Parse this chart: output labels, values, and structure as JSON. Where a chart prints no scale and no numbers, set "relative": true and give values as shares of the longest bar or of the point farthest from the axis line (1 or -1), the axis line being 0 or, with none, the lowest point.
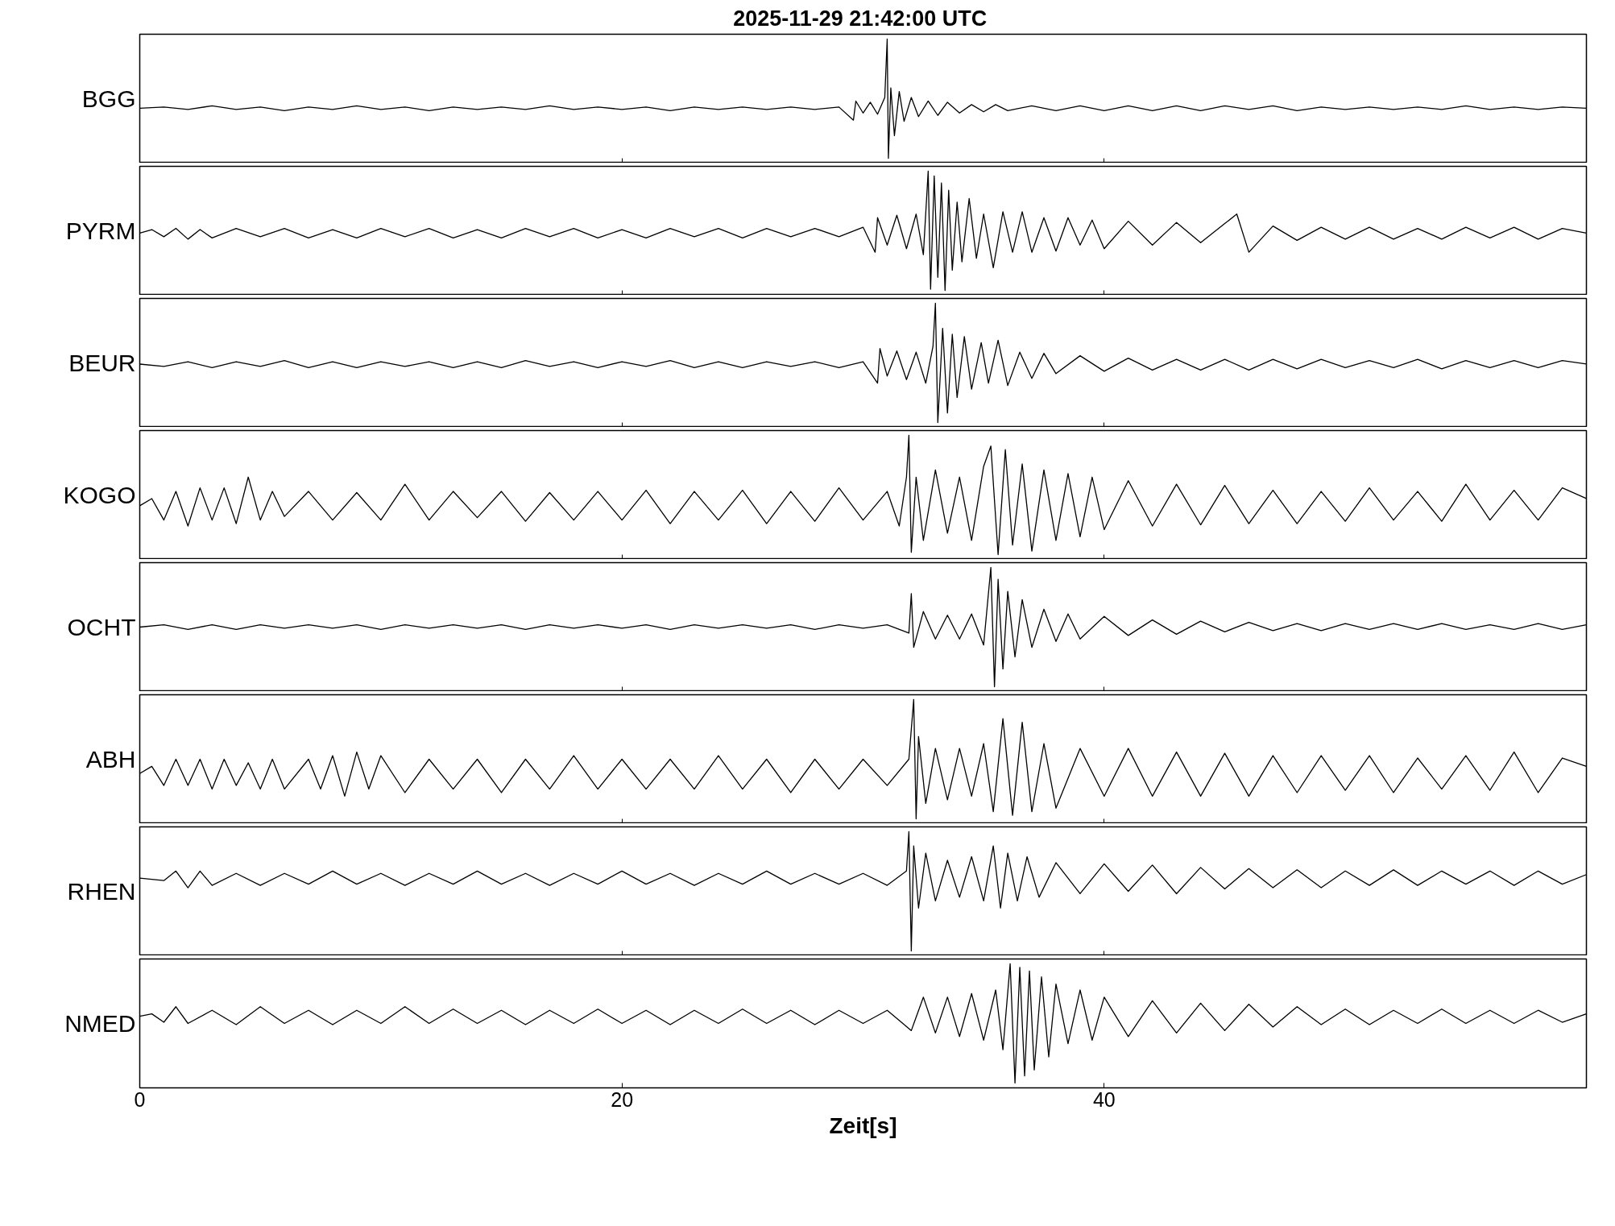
{
  "chart_data": [
    {
      "type": "line",
      "title": "2025-11-29  21:42:00 UTC",
      "ylabel": "BGG",
      "relative": true,
      "xlim": [
        0,
        60
      ],
      "xticks": [
        0,
        20,
        40
      ],
      "tick_labels": false,
      "series": [
        {
          "color": "#000000",
          "x": [
            0,
            1,
            2,
            3,
            4,
            5,
            6,
            7,
            8,
            9,
            10,
            11,
            12,
            13,
            14,
            15,
            16,
            17,
            18,
            19,
            20,
            21,
            22,
            23,
            24,
            25,
            26,
            27,
            28,
            29,
            29.6,
            29.7,
            30.0,
            30.3,
            30.6,
            30.9,
            31.0,
            31.05,
            31.15,
            31.3,
            31.5,
            31.7,
            32.0,
            32.3,
            32.7,
            33.1,
            33.5,
            34,
            34.5,
            35,
            35.5,
            36,
            37,
            38,
            39,
            40,
            41,
            42,
            43,
            44,
            45,
            46,
            47,
            48,
            49,
            50,
            51,
            52,
            53,
            54,
            55,
            56,
            57,
            58,
            59,
            60
          ],
          "values": [
            0.42,
            0.43,
            0.41,
            0.44,
            0.41,
            0.43,
            0.4,
            0.43,
            0.41,
            0.44,
            0.41,
            0.43,
            0.4,
            0.43,
            0.41,
            0.43,
            0.41,
            0.44,
            0.41,
            0.43,
            0.41,
            0.43,
            0.4,
            0.43,
            0.41,
            0.43,
            0.41,
            0.43,
            0.41,
            0.43,
            0.32,
            0.48,
            0.38,
            0.47,
            0.37,
            0.51,
            1,
            0,
            0.59,
            0.19,
            0.56,
            0.31,
            0.51,
            0.35,
            0.48,
            0.36,
            0.47,
            0.38,
            0.45,
            0.39,
            0.45,
            0.4,
            0.44,
            0.4,
            0.44,
            0.4,
            0.44,
            0.4,
            0.44,
            0.4,
            0.44,
            0.41,
            0.44,
            0.4,
            0.43,
            0.41,
            0.43,
            0.41,
            0.43,
            0.41,
            0.44,
            0.41,
            0.43,
            0.41,
            0.43,
            0.42
          ]
        }
      ]
    },
    {
      "type": "line",
      "ylabel": "PYRM",
      "relative": true,
      "xlim": [
        0,
        60
      ],
      "xticks": [
        0,
        20,
        40
      ],
      "tick_labels": false,
      "series": [
        {
          "color": "#000000",
          "x": [
            0,
            0.5,
            1,
            1.5,
            2,
            2.5,
            3,
            4,
            5,
            6,
            7,
            8,
            9,
            10,
            11,
            12,
            13,
            14,
            15,
            16,
            17,
            18,
            19,
            20,
            21,
            22,
            23,
            24,
            25,
            26,
            27,
            28,
            29,
            30,
            30.5,
            30.6,
            31,
            31.4,
            31.8,
            32.2,
            32.5,
            32.7,
            32.8,
            32.95,
            33.1,
            33.25,
            33.4,
            33.55,
            33.7,
            33.9,
            34.1,
            34.4,
            34.7,
            35,
            35.4,
            35.8,
            36.2,
            36.6,
            37,
            37.5,
            38,
            38.5,
            39,
            39.5,
            40,
            41,
            42,
            43,
            44,
            45,
            45.5,
            46,
            47,
            48,
            49,
            50,
            51,
            52,
            53,
            54,
            55,
            56,
            57,
            58,
            59,
            60
          ],
          "values": [
            0.48,
            0.51,
            0.45,
            0.52,
            0.43,
            0.51,
            0.44,
            0.52,
            0.45,
            0.52,
            0.44,
            0.51,
            0.44,
            0.52,
            0.45,
            0.52,
            0.44,
            0.51,
            0.44,
            0.52,
            0.45,
            0.52,
            0.44,
            0.51,
            0.44,
            0.52,
            0.45,
            0.52,
            0.44,
            0.52,
            0.45,
            0.52,
            0.45,
            0.53,
            0.32,
            0.61,
            0.38,
            0.63,
            0.35,
            0.64,
            0.3,
            1,
            0.01,
            0.96,
            0.11,
            0.9,
            0,
            0.84,
            0.17,
            0.74,
            0.24,
            0.77,
            0.27,
            0.64,
            0.19,
            0.66,
            0.32,
            0.66,
            0.32,
            0.61,
            0.33,
            0.61,
            0.38,
            0.59,
            0.35,
            0.58,
            0.38,
            0.57,
            0.4,
            0.56,
            0.64,
            0.32,
            0.54,
            0.42,
            0.53,
            0.43,
            0.53,
            0.43,
            0.52,
            0.43,
            0.53,
            0.44,
            0.53,
            0.43,
            0.52,
            0.48
          ]
        }
      ]
    },
    {
      "type": "line",
      "ylabel": "BEUR",
      "relative": true,
      "xlim": [
        0,
        60
      ],
      "xticks": [
        0,
        20,
        40
      ],
      "tick_labels": false,
      "series": [
        {
          "color": "#000000",
          "x": [
            0,
            1,
            2,
            3,
            4,
            5,
            6,
            7,
            8,
            9,
            10,
            11,
            12,
            13,
            14,
            15,
            16,
            17,
            18,
            19,
            20,
            21,
            22,
            23,
            24,
            25,
            26,
            27,
            28,
            29,
            30,
            30.6,
            30.7,
            31,
            31.4,
            31.8,
            32.2,
            32.6,
            32.9,
            33.0,
            33.1,
            33.3,
            33.5,
            33.7,
            33.9,
            34.2,
            34.5,
            34.9,
            35.2,
            35.6,
            36,
            36.5,
            37,
            37.5,
            38,
            39,
            40,
            41,
            42,
            43,
            44,
            45,
            46,
            47,
            48,
            49,
            50,
            51,
            52,
            53,
            54,
            55,
            56,
            57,
            58,
            59,
            60
          ],
          "values": [
            0.49,
            0.47,
            0.51,
            0.46,
            0.51,
            0.47,
            0.52,
            0.46,
            0.51,
            0.46,
            0.51,
            0.47,
            0.51,
            0.46,
            0.51,
            0.46,
            0.52,
            0.47,
            0.51,
            0.46,
            0.51,
            0.47,
            0.52,
            0.46,
            0.51,
            0.46,
            0.51,
            0.47,
            0.51,
            0.46,
            0.51,
            0.33,
            0.62,
            0.39,
            0.6,
            0.36,
            0.59,
            0.33,
            0.64,
            1,
            0,
            0.79,
            0.08,
            0.74,
            0.21,
            0.72,
            0.28,
            0.67,
            0.33,
            0.69,
            0.31,
            0.59,
            0.37,
            0.58,
            0.41,
            0.56,
            0.43,
            0.54,
            0.44,
            0.53,
            0.44,
            0.53,
            0.44,
            0.53,
            0.45,
            0.53,
            0.46,
            0.52,
            0.46,
            0.53,
            0.45,
            0.52,
            0.46,
            0.52,
            0.46,
            0.52,
            0.49
          ]
        }
      ]
    },
    {
      "type": "line",
      "ylabel": "KOGO",
      "relative": true,
      "xlim": [
        0,
        60
      ],
      "xticks": [
        0,
        20,
        40
      ],
      "tick_labels": false,
      "series": [
        {
          "color": "#000000",
          "x": [
            0,
            0.5,
            1,
            1.5,
            2,
            2.5,
            3,
            3.5,
            4,
            4.5,
            5,
            5.5,
            6,
            7,
            8,
            9,
            10,
            11,
            12,
            13,
            14,
            15,
            16,
            17,
            18,
            19,
            20,
            21,
            22,
            23,
            24,
            25,
            26,
            27,
            28,
            29,
            30,
            31,
            31.5,
            31.8,
            31.9,
            32.0,
            32.2,
            32.5,
            33,
            33.5,
            34,
            34.5,
            35,
            35.3,
            35.6,
            35.9,
            36.2,
            36.6,
            37,
            37.5,
            38,
            38.5,
            39,
            39.5,
            40,
            41,
            42,
            43,
            44,
            45,
            46,
            47,
            48,
            49,
            50,
            51,
            52,
            53,
            54,
            55,
            56,
            57,
            58,
            59,
            60
          ],
          "values": [
            0.41,
            0.47,
            0.29,
            0.53,
            0.24,
            0.56,
            0.29,
            0.56,
            0.26,
            0.65,
            0.29,
            0.53,
            0.32,
            0.53,
            0.29,
            0.52,
            0.29,
            0.59,
            0.29,
            0.53,
            0.31,
            0.53,
            0.28,
            0.52,
            0.29,
            0.53,
            0.29,
            0.54,
            0.26,
            0.53,
            0.29,
            0.54,
            0.26,
            0.53,
            0.28,
            0.56,
            0.29,
            0.53,
            0.24,
            0.65,
            1,
            0.02,
            0.65,
            0.12,
            0.71,
            0.18,
            0.65,
            0.12,
            0.74,
            0.91,
            0,
            0.88,
            0.08,
            0.76,
            0.03,
            0.71,
            0.12,
            0.68,
            0.15,
            0.65,
            0.21,
            0.62,
            0.24,
            0.59,
            0.25,
            0.58,
            0.26,
            0.54,
            0.26,
            0.53,
            0.28,
            0.56,
            0.29,
            0.53,
            0.28,
            0.59,
            0.29,
            0.54,
            0.29,
            0.56,
            0.47
          ]
        }
      ]
    },
    {
      "type": "line",
      "ylabel": "OCHT",
      "relative": true,
      "xlim": [
        0,
        60
      ],
      "xticks": [
        0,
        20,
        40
      ],
      "tick_labels": false,
      "series": [
        {
          "color": "#000000",
          "x": [
            0,
            1,
            2,
            3,
            4,
            5,
            6,
            7,
            8,
            9,
            10,
            11,
            12,
            13,
            14,
            15,
            16,
            17,
            18,
            19,
            20,
            21,
            22,
            23,
            24,
            25,
            26,
            27,
            28,
            29,
            30,
            31,
            31.9,
            32.0,
            32.1,
            32.5,
            33,
            33.5,
            34,
            34.5,
            35,
            35.3,
            35.45,
            35.6,
            35.8,
            36,
            36.3,
            36.6,
            37,
            37.5,
            38,
            38.5,
            39,
            40,
            41,
            42,
            43,
            44,
            45,
            46,
            47,
            48,
            49,
            50,
            51,
            52,
            53,
            54,
            55,
            56,
            57,
            58,
            59,
            60
          ],
          "values": [
            0.5,
            0.52,
            0.48,
            0.52,
            0.48,
            0.52,
            0.49,
            0.52,
            0.49,
            0.52,
            0.48,
            0.52,
            0.49,
            0.52,
            0.49,
            0.52,
            0.48,
            0.52,
            0.49,
            0.52,
            0.49,
            0.52,
            0.48,
            0.52,
            0.49,
            0.52,
            0.49,
            0.52,
            0.48,
            0.52,
            0.49,
            0.52,
            0.45,
            0.78,
            0.33,
            0.63,
            0.4,
            0.6,
            0.4,
            0.61,
            0.35,
            1,
            0,
            0.9,
            0.15,
            0.8,
            0.25,
            0.73,
            0.33,
            0.65,
            0.38,
            0.61,
            0.4,
            0.59,
            0.43,
            0.56,
            0.44,
            0.55,
            0.46,
            0.54,
            0.47,
            0.53,
            0.47,
            0.53,
            0.48,
            0.53,
            0.48,
            0.53,
            0.48,
            0.52,
            0.48,
            0.53,
            0.48,
            0.52
          ]
        }
      ]
    },
    {
      "type": "line",
      "ylabel": "ABH",
      "relative": true,
      "xlim": [
        0,
        60
      ],
      "xticks": [
        0,
        20,
        40
      ],
      "tick_labels": false,
      "series": [
        {
          "color": "#000000",
          "x": [
            0,
            0.5,
            1,
            1.5,
            2,
            2.5,
            3,
            3.5,
            4,
            4.5,
            5,
            5.5,
            6,
            7,
            7.5,
            8,
            8.5,
            9,
            9.5,
            10,
            11,
            12,
            13,
            14,
            15,
            16,
            17,
            18,
            19,
            20,
            21,
            22,
            23,
            24,
            25,
            26,
            27,
            28,
            29,
            30,
            31,
            31.9,
            32.1,
            32.2,
            32.3,
            32.6,
            33,
            33.5,
            34,
            34.5,
            35,
            35.4,
            35.8,
            36.2,
            36.6,
            37,
            37.5,
            38,
            39,
            40,
            41,
            42,
            43,
            44,
            45,
            46,
            47,
            48,
            49,
            50,
            51,
            52,
            53,
            54,
            55,
            56,
            57,
            58,
            59,
            60
          ],
          "values": [
            0.38,
            0.44,
            0.28,
            0.5,
            0.28,
            0.5,
            0.25,
            0.5,
            0.28,
            0.47,
            0.25,
            0.5,
            0.25,
            0.5,
            0.25,
            0.53,
            0.19,
            0.56,
            0.25,
            0.53,
            0.22,
            0.5,
            0.25,
            0.5,
            0.22,
            0.5,
            0.25,
            0.53,
            0.25,
            0.5,
            0.25,
            0.5,
            0.25,
            0.53,
            0.25,
            0.5,
            0.22,
            0.5,
            0.25,
            0.5,
            0.28,
            0.5,
            1,
            0,
            0.69,
            0.13,
            0.59,
            0.16,
            0.59,
            0.19,
            0.63,
            0.06,
            0.84,
            0.03,
            0.81,
            0.06,
            0.63,
            0.09,
            0.59,
            0.19,
            0.59,
            0.19,
            0.56,
            0.19,
            0.55,
            0.19,
            0.53,
            0.22,
            0.53,
            0.24,
            0.53,
            0.22,
            0.51,
            0.25,
            0.53,
            0.24,
            0.56,
            0.22,
            0.51,
            0.44
          ]
        }
      ]
    },
    {
      "type": "line",
      "ylabel": "RHEN",
      "relative": true,
      "xlim": [
        0,
        60
      ],
      "xticks": [
        0,
        20,
        40
      ],
      "tick_labels": false,
      "series": [
        {
          "color": "#000000",
          "x": [
            0,
            1,
            1.5,
            2,
            2.5,
            3,
            4,
            5,
            6,
            7,
            8,
            9,
            10,
            11,
            12,
            13,
            14,
            15,
            16,
            17,
            18,
            19,
            20,
            21,
            22,
            23,
            24,
            25,
            26,
            27,
            28,
            29,
            30,
            31,
            31.8,
            31.9,
            32.0,
            32.1,
            32.3,
            32.6,
            33,
            33.5,
            34,
            34.5,
            35,
            35.4,
            35.7,
            36,
            36.4,
            36.8,
            37.3,
            38,
            39,
            40,
            41,
            42,
            43,
            44,
            45,
            46,
            47,
            48,
            49,
            50,
            51,
            52,
            53,
            54,
            55,
            56,
            57,
            58,
            59,
            60
          ],
          "values": [
            0.61,
            0.59,
            0.67,
            0.53,
            0.67,
            0.55,
            0.65,
            0.55,
            0.65,
            0.56,
            0.67,
            0.56,
            0.65,
            0.55,
            0.65,
            0.56,
            0.67,
            0.56,
            0.65,
            0.55,
            0.65,
            0.56,
            0.67,
            0.56,
            0.65,
            0.55,
            0.65,
            0.56,
            0.67,
            0.56,
            0.65,
            0.56,
            0.65,
            0.55,
            0.67,
            1,
            0,
            0.88,
            0.36,
            0.82,
            0.42,
            0.76,
            0.45,
            0.79,
            0.42,
            0.88,
            0.36,
            0.82,
            0.42,
            0.79,
            0.45,
            0.74,
            0.48,
            0.73,
            0.5,
            0.72,
            0.48,
            0.7,
            0.52,
            0.69,
            0.53,
            0.68,
            0.53,
            0.67,
            0.55,
            0.68,
            0.55,
            0.67,
            0.56,
            0.67,
            0.55,
            0.67,
            0.56,
            0.64
          ]
        }
      ]
    },
    {
      "type": "line",
      "xlabel": "Zeit[s]",
      "ylabel": "NMED",
      "relative": true,
      "xlim": [
        0,
        60
      ],
      "xticks": [
        0,
        20,
        40
      ],
      "tick_labels": "x",
      "series": [
        {
          "color": "#000000",
          "x": [
            0,
            0.5,
            1,
            1.5,
            2,
            3,
            4,
            5,
            6,
            7,
            8,
            9,
            10,
            11,
            12,
            13,
            14,
            15,
            16,
            17,
            18,
            19,
            20,
            21,
            22,
            23,
            24,
            25,
            26,
            27,
            28,
            29,
            30,
            31,
            32,
            32.5,
            33,
            33.5,
            34,
            34.5,
            35,
            35.5,
            35.8,
            36.1,
            36.3,
            36.5,
            36.7,
            36.9,
            37.1,
            37.4,
            37.7,
            38,
            38.5,
            39,
            39.5,
            40,
            41,
            42,
            43,
            44,
            45,
            46,
            47,
            48,
            49,
            50,
            51,
            52,
            53,
            54,
            55,
            56,
            57,
            58,
            59,
            60
          ],
          "values": [
            0.56,
            0.58,
            0.51,
            0.64,
            0.5,
            0.61,
            0.49,
            0.64,
            0.5,
            0.61,
            0.49,
            0.61,
            0.5,
            0.64,
            0.5,
            0.62,
            0.5,
            0.61,
            0.49,
            0.61,
            0.5,
            0.62,
            0.5,
            0.61,
            0.49,
            0.61,
            0.5,
            0.62,
            0.5,
            0.61,
            0.49,
            0.61,
            0.5,
            0.61,
            0.44,
            0.72,
            0.42,
            0.72,
            0.39,
            0.75,
            0.36,
            0.78,
            0.28,
            1,
            0,
            0.97,
            0.06,
            0.94,
            0.11,
            0.89,
            0.22,
            0.83,
            0.33,
            0.78,
            0.36,
            0.72,
            0.39,
            0.69,
            0.42,
            0.67,
            0.44,
            0.66,
            0.47,
            0.64,
            0.49,
            0.62,
            0.49,
            0.61,
            0.5,
            0.62,
            0.5,
            0.61,
            0.5,
            0.61,
            0.51,
            0.58
          ]
        }
      ]
    }
  ]
}
